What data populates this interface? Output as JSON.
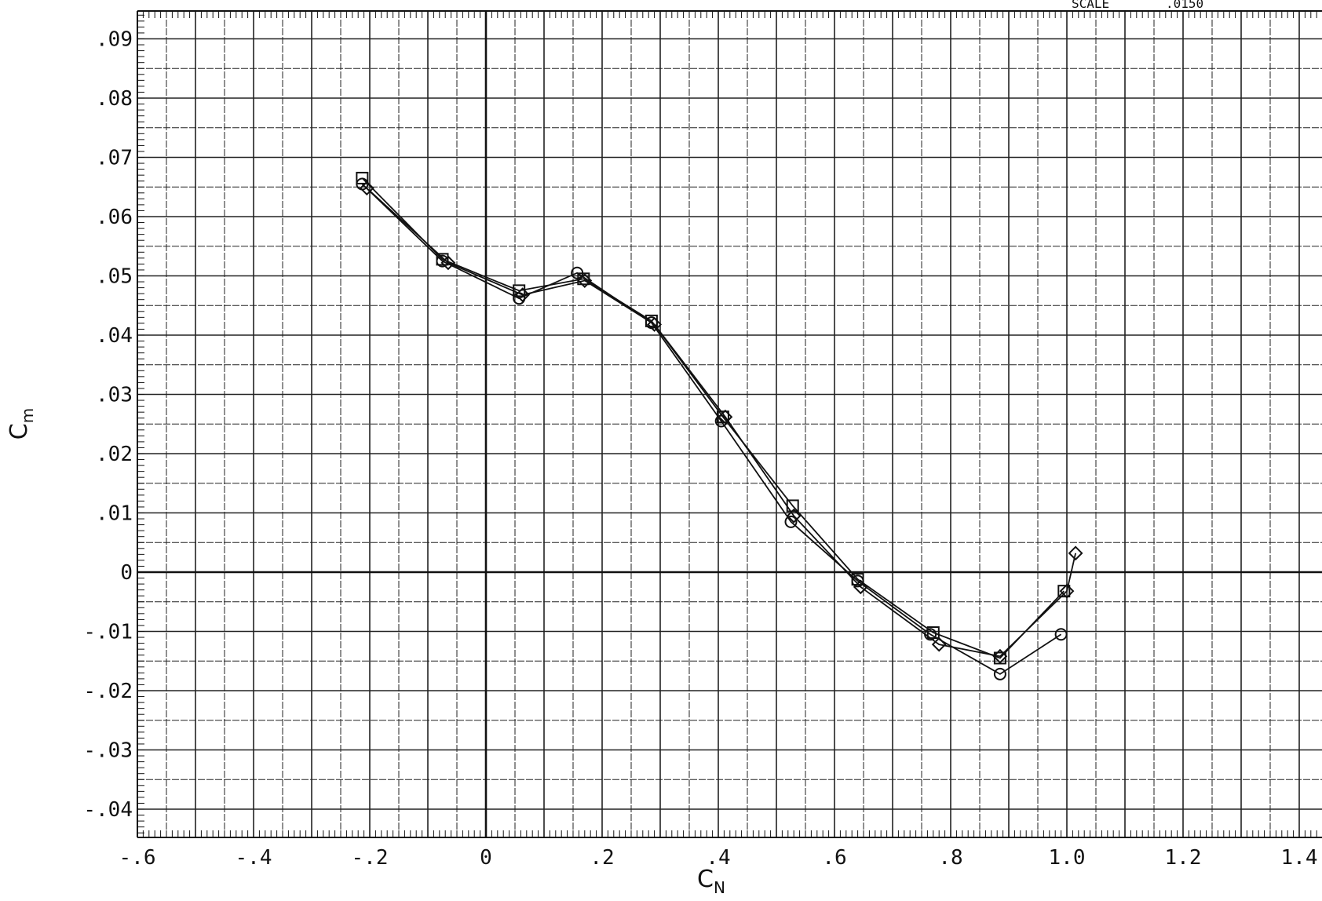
{
  "chart_data": {
    "type": "line",
    "xlabel": "C",
    "xlabel_sub": "N",
    "ylabel": "C",
    "ylabel_sub": "m",
    "xlim": [
      -0.6,
      1.45
    ],
    "ylim": [
      -0.045,
      0.095
    ],
    "grid": true,
    "scale_label": "SCALE",
    "scale_value": ".0150",
    "x_ticks": [
      {
        "value": -0.6,
        "label": "-.6"
      },
      {
        "value": -0.4,
        "label": "-.4"
      },
      {
        "value": -0.2,
        "label": "-.2"
      },
      {
        "value": 0,
        "label": "0"
      },
      {
        "value": 0.2,
        "label": ".2"
      },
      {
        "value": 0.4,
        "label": ".4"
      },
      {
        "value": 0.6,
        "label": ".6"
      },
      {
        "value": 0.8,
        "label": ".8"
      },
      {
        "value": 1.0,
        "label": "1.0"
      },
      {
        "value": 1.2,
        "label": "1.2"
      },
      {
        "value": 1.4,
        "label": "1.4"
      }
    ],
    "y_ticks": [
      {
        "value": 0.09,
        "label": ".09"
      },
      {
        "value": 0.08,
        "label": ".08"
      },
      {
        "value": 0.07,
        "label": ".07"
      },
      {
        "value": 0.06,
        "label": ".06"
      },
      {
        "value": 0.05,
        "label": ".05"
      },
      {
        "value": 0.04,
        "label": ".04"
      },
      {
        "value": 0.03,
        "label": ".03"
      },
      {
        "value": 0.02,
        "label": ".02"
      },
      {
        "value": 0.01,
        "label": ".01"
      },
      {
        "value": 0,
        "label": "0"
      },
      {
        "value": -0.01,
        "label": "-.01"
      },
      {
        "value": -0.02,
        "label": "-.02"
      },
      {
        "value": -0.03,
        "label": "-.03"
      },
      {
        "value": -0.04,
        "label": "-.04"
      }
    ],
    "series": [
      {
        "marker": "circle",
        "points": [
          {
            "x": -0.213,
            "y": 0.0655
          },
          {
            "x": -0.075,
            "y": 0.0525
          },
          {
            "x": 0.057,
            "y": 0.0462
          },
          {
            "x": 0.157,
            "y": 0.0505
          },
          {
            "x": 0.285,
            "y": 0.0421
          },
          {
            "x": 0.405,
            "y": 0.0255
          },
          {
            "x": 0.525,
            "y": 0.0085
          },
          {
            "x": 0.64,
            "y": -0.0015
          },
          {
            "x": 0.765,
            "y": -0.0105
          },
          {
            "x": 0.885,
            "y": -0.0172
          },
          {
            "x": 0.99,
            "y": -0.0105
          }
        ]
      },
      {
        "marker": "square",
        "points": [
          {
            "x": -0.213,
            "y": 0.0665
          },
          {
            "x": -0.075,
            "y": 0.0528
          },
          {
            "x": 0.057,
            "y": 0.0475
          },
          {
            "x": 0.168,
            "y": 0.0495
          },
          {
            "x": 0.285,
            "y": 0.0424
          },
          {
            "x": 0.408,
            "y": 0.0262
          },
          {
            "x": 0.528,
            "y": 0.0112
          },
          {
            "x": 0.64,
            "y": -0.0012
          },
          {
            "x": 0.77,
            "y": -0.0102
          },
          {
            "x": 0.885,
            "y": -0.0145
          },
          {
            "x": 0.995,
            "y": -0.0032
          }
        ]
      },
      {
        "marker": "diamond",
        "points": [
          {
            "x": -0.205,
            "y": 0.0648
          },
          {
            "x": -0.065,
            "y": 0.0522
          },
          {
            "x": 0.063,
            "y": 0.0468
          },
          {
            "x": 0.17,
            "y": 0.0492
          },
          {
            "x": 0.29,
            "y": 0.0418
          },
          {
            "x": 0.412,
            "y": 0.0262
          },
          {
            "x": 0.53,
            "y": 0.0095
          },
          {
            "x": 0.645,
            "y": -0.0025
          },
          {
            "x": 0.78,
            "y": -0.0122
          },
          {
            "x": 0.885,
            "y": -0.0142
          },
          {
            "x": 1.0,
            "y": -0.0032
          },
          {
            "x": 1.015,
            "y": 0.0032
          }
        ]
      }
    ]
  }
}
